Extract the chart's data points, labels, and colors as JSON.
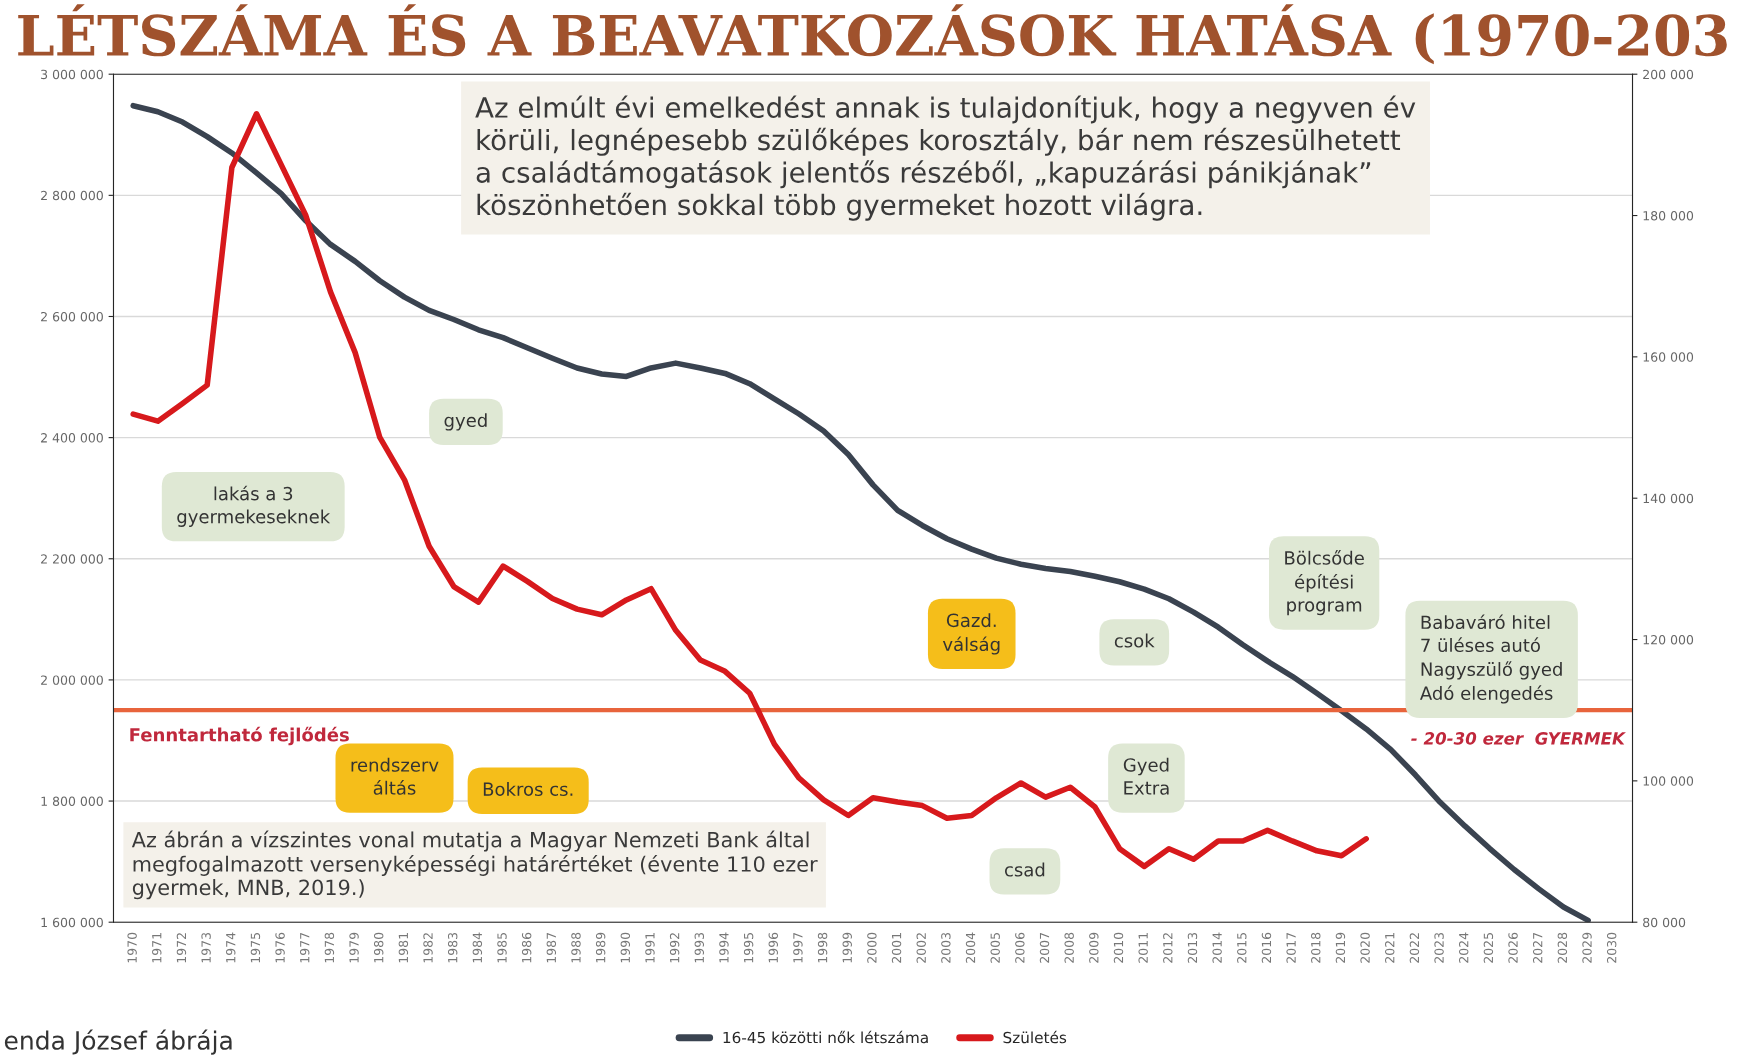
{
  "chart_data": {
    "type": "line",
    "title": "LÉTSZÁMA ÉS A BEAVATKOZÁSOK HATÁSA (1970-203",
    "categories": [
      "1970",
      "1971",
      "1972",
      "1973",
      "1974",
      "1975",
      "1976",
      "1977",
      "1978",
      "1979",
      "1980",
      "1981",
      "1982",
      "1983",
      "1984",
      "1985",
      "1986",
      "1987",
      "1988",
      "1989",
      "1990",
      "1991",
      "1992",
      "1993",
      "1994",
      "1995",
      "1996",
      "1997",
      "1998",
      "1999",
      "2000",
      "2001",
      "2002",
      "2003",
      "2004",
      "2005",
      "2006",
      "2007",
      "2008",
      "2009",
      "2010",
      "2011",
      "2012",
      "2013",
      "2014",
      "2015",
      "2016",
      "2017",
      "2018",
      "2019",
      "2020",
      "2021",
      "2022",
      "2023",
      "2024",
      "2025",
      "2026",
      "2027",
      "2028",
      "2029",
      "2030"
    ],
    "series": [
      {
        "name": "16-45 közötti nők létszáma",
        "color": "#3a4350",
        "axis": "y",
        "values": [
          2948000,
          2938000,
          2921000,
          2897000,
          2870000,
          2837000,
          2803000,
          2758000,
          2719000,
          2691000,
          2659000,
          2632000,
          2610000,
          2595000,
          2578000,
          2565000,
          2548000,
          2531000,
          2515000,
          2505000,
          2501000,
          2515000,
          2523000,
          2515000,
          2506000,
          2489000,
          2464000,
          2439000,
          2411000,
          2372000,
          2322000,
          2280000,
          2255000,
          2233000,
          2216000,
          2201000,
          2191000,
          2184000,
          2179000,
          2171000,
          2162000,
          2150000,
          2134000,
          2112000,
          2087000,
          2058000,
          2031000,
          2006000,
          1978000,
          1949000,
          1919000,
          1885000,
          1843000,
          1798000,
          1759000,
          1722000,
          1687000,
          1655000,
          1625000,
          1603000,
          null
        ]
      },
      {
        "name": "Születés",
        "color": "#d7191c",
        "axis": "y2",
        "values": [
          151900,
          150900,
          153400,
          156000,
          186800,
          194400,
          187200,
          180000,
          169200,
          160600,
          148600,
          142600,
          133200,
          127500,
          125300,
          130400,
          128200,
          125800,
          124300,
          123500,
          125600,
          127200,
          121300,
          117100,
          115500,
          112400,
          105200,
          100400,
          97300,
          95100,
          97600,
          97000,
          96500,
          94700,
          95100,
          97600,
          99700,
          97700,
          99100,
          96300,
          90400,
          87900,
          90400,
          88900,
          91500,
          91500,
          93000,
          91500,
          90100,
          89400,
          91800,
          null,
          null,
          null,
          null,
          null,
          null,
          null,
          null,
          null,
          null
        ]
      }
    ],
    "ylim": [
      1600000,
      3000000
    ],
    "yticks": [
      {
        "value": 1600000,
        "label": "1 600 000"
      },
      {
        "value": 1800000,
        "label": "1 800 000"
      },
      {
        "value": 2000000,
        "label": "2 000 000"
      },
      {
        "value": 2200000,
        "label": "2 200 000"
      },
      {
        "value": 2400000,
        "label": "2 400 000"
      },
      {
        "value": 2600000,
        "label": "2 600 000"
      },
      {
        "value": 2800000,
        "label": "2 800 000"
      },
      {
        "value": 3000000,
        "label": "3 000 000"
      }
    ],
    "y2lim": [
      80000,
      200000
    ],
    "y2ticks": [
      {
        "value": 80000,
        "label": "80 000"
      },
      {
        "value": 100000,
        "label": "100 000"
      },
      {
        "value": 120000,
        "label": "120 000"
      },
      {
        "value": 140000,
        "label": "140 000"
      },
      {
        "value": 160000,
        "label": "160 000"
      },
      {
        "value": 180000,
        "label": "180 000"
      },
      {
        "value": 200000,
        "label": "200 000"
      }
    ],
    "ref_lines": [
      {
        "axis": "y2",
        "value": 110000,
        "label": "Fenntartható fejlődés",
        "color": "#e8643c"
      }
    ],
    "grid": "y",
    "legend": "bottom",
    "marker": "none",
    "line_style": "solid",
    "annotations": [
      "Az elmúlt évi emelkedést annak is tulajdonítjuk, hogy a negyven év\nkörüli, legnépesebb szülőképes korosztály, bár nem részesülhetett\na családtámogatások jelentős részéből, „kapuzárási pánikjának”\nköszönhetően sokkal több gyermeket hozott világra.",
      "lakás a 3\ngyermekeseknek",
      "gyed",
      "rendszerv\náltás",
      "Bokros cs.",
      "Gazd.\nválság",
      "csad",
      "Gyed\nExtra",
      "csok",
      "Bölcsőde\népítési\nprogram",
      "Babaváró hitel\n7 üléses autó\nNagyszülő gyed\nAdó elengedés",
      "- 20-30 ezer  GYERMEK",
      "Az ábrán a vízszintes vonal mutatja a Magyar Nemzeti Bank által\nmegfogalmazott versenyképességi határértéket (évente 110 ezer\ngyermek, MNB, 2019.)",
      "enda József ábrája"
    ]
  }
}
